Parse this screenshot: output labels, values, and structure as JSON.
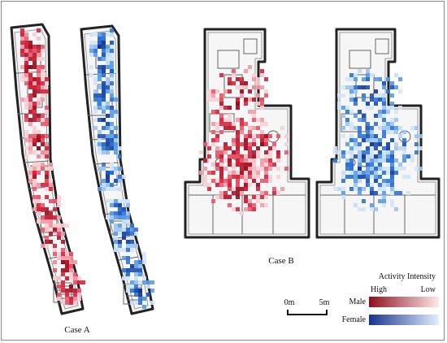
{
  "cases": [
    {
      "label": "Case A"
    },
    {
      "label": "Case B"
    }
  ],
  "legend": {
    "title": "Activity Intensity",
    "high": "High",
    "low": "Low",
    "rows": [
      {
        "label": "Male",
        "color_high": "#8e0f1e",
        "color_low": "#ffe7e9"
      },
      {
        "label": "Female",
        "color_high": "#16348e",
        "color_low": "#e2efff"
      }
    ]
  },
  "scale_bar": {
    "start": "0m",
    "end": "5m"
  },
  "colors": {
    "male": "#c8102e",
    "female": "#1f63c9"
  }
}
